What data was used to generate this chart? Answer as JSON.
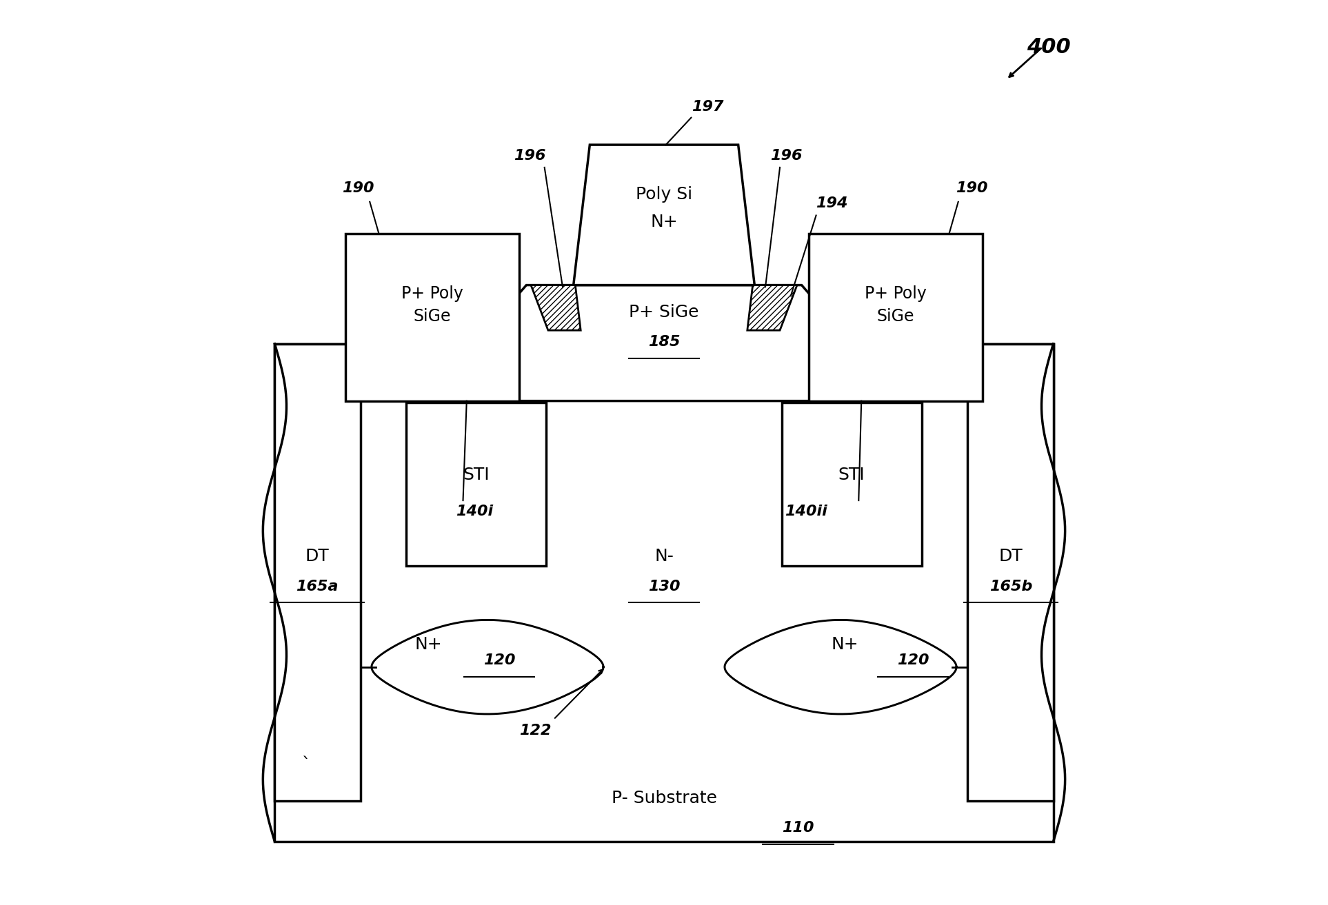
{
  "bg_color": "#ffffff",
  "line_color": "#000000",
  "fs": 18,
  "fs_ref": 16,
  "lw": 2.5,
  "labels": {
    "substrate_text": "P- Substrate",
    "substrate_ref": "110",
    "nwell_text": "N-",
    "nwell_ref": "130",
    "nplus_left_text": "N+",
    "nplus_left_ref": "120",
    "nplus_right_text": "N+",
    "nplus_right_ref": "120",
    "dt_left_text": "DT",
    "dt_left_ref": "165a",
    "dt_right_text": "DT",
    "dt_right_ref": "165b",
    "sti_left_text": "STI",
    "sti_right_text": "STI",
    "label_140i": "140i",
    "label_140ii": "140ii",
    "ppoly_left": "P+ Poly\nSiGe",
    "ppoly_right": "P+ Poly\nSiGe",
    "psige_text": "P+ SiGe",
    "psige_ref": "185",
    "polysi_text": "Poly Si",
    "polysi_sub": "N+",
    "polysi_ref": "197",
    "ref_190_left": "190",
    "ref_190_right": "190",
    "ref_196_left": "196",
    "ref_196_right": "196",
    "ref_194": "194",
    "ref_122": "122",
    "fig_label": "400"
  }
}
